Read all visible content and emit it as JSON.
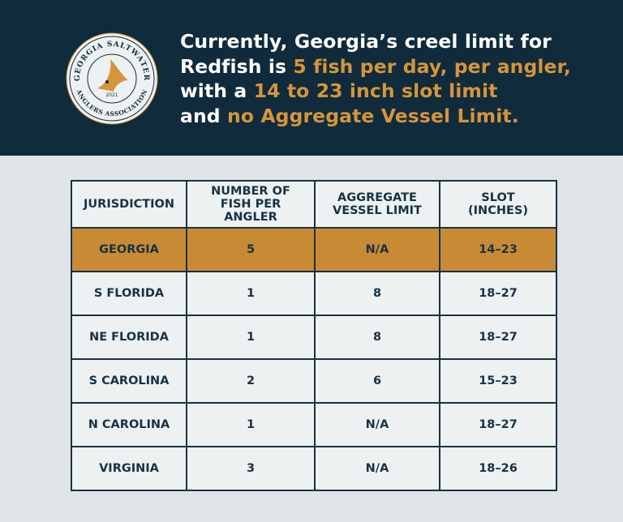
{
  "logo": {
    "top_text": "GEORGIA SALTWATER",
    "bottom_text": "ANGLERS ASSOCIATION",
    "year": "2021"
  },
  "header": {
    "lines": [
      [
        {
          "text": "Currently, Georgia’s creel limit for",
          "highlight": false
        }
      ],
      [
        {
          "text": "Redfish is ",
          "highlight": false
        },
        {
          "text": "5 fish per day, per angler,",
          "highlight": true
        }
      ],
      [
        {
          "text": "with a ",
          "highlight": false
        },
        {
          "text": "14 to 23 inch slot limit",
          "highlight": true
        }
      ],
      [
        {
          "text": "and ",
          "highlight": false
        },
        {
          "text": "no Aggregate Vessel Limit.",
          "highlight": true
        }
      ]
    ]
  },
  "table": {
    "columns": [
      "JURISDICTION",
      "NUMBER OF FISH PER ANGLER",
      "AGGREGATE VESSEL LIMIT",
      "SLOT (INCHES)"
    ],
    "rows": [
      [
        "GEORGIA",
        5,
        "N/A",
        "14–23"
      ],
      [
        "S FLORIDA",
        1,
        8,
        "18–27"
      ],
      [
        "NE FLORIDA",
        1,
        8,
        "18–27"
      ],
      [
        "S CAROLINA",
        2,
        6,
        "15–23"
      ],
      [
        "N CAROLINA",
        1,
        "N/A",
        "18–27"
      ],
      [
        "VIRGINIA",
        3,
        "N/A",
        "18–26"
      ]
    ],
    "highlight_row": 0
  }
}
